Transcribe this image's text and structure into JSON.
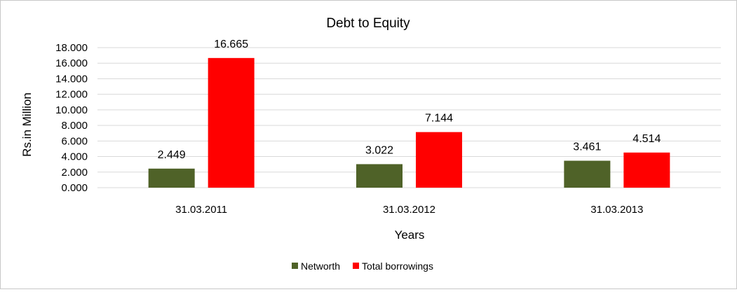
{
  "chart_data": {
    "type": "bar",
    "title": "Debt to Equity",
    "xlabel": "Years",
    "ylabel": "Rs.in Million",
    "categories": [
      "31.03.2011",
      "31.03.2012",
      "31.03.2013"
    ],
    "series": [
      {
        "name": "Networth",
        "values": [
          2.449,
          3.022,
          3.461
        ],
        "color": "#4f6228"
      },
      {
        "name": "Total borrowings",
        "values": [
          16.665,
          7.144,
          4.514
        ],
        "color": "#ff0000"
      }
    ],
    "ylim": [
      0,
      18
    ],
    "yticks": [
      "0.000",
      "2.000",
      "4.000",
      "6.000",
      "8.000",
      "10.000",
      "12.000",
      "14.000",
      "16.000",
      "18.000"
    ],
    "data_labels": [
      [
        "2.449",
        "3.022",
        "3.461"
      ],
      [
        "16.665",
        "7.144",
        "4.514"
      ]
    ],
    "grid": true,
    "legend_position": "bottom"
  }
}
